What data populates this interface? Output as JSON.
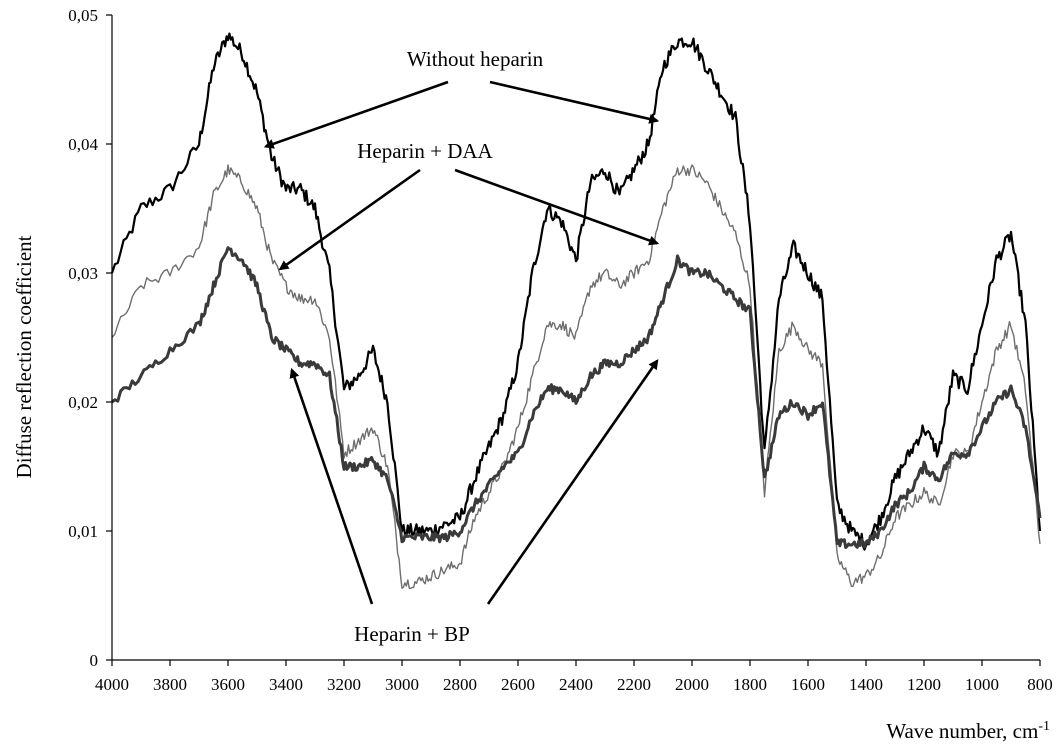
{
  "chart_data": {
    "type": "line",
    "title": "",
    "xlabel": "Wave number, cm",
    "xlabel_sup": "-1",
    "ylabel": "Diffuse reflection coefficient",
    "xlim": [
      4000,
      800
    ],
    "x_reversed": true,
    "ylim": [
      0,
      0.05
    ],
    "grid": false,
    "legend": "none",
    "x_ticks": [
      "4000",
      "3800",
      "3600",
      "3400",
      "3200",
      "3000",
      "2800",
      "2600",
      "2400",
      "2200",
      "2000",
      "1800",
      "1600",
      "1400",
      "1200",
      "1000",
      "800"
    ],
    "y_ticks": [
      "0",
      "0,01",
      "0,02",
      "0,03",
      "0,04",
      "0,05"
    ],
    "x": [
      4000,
      3900,
      3800,
      3700,
      3650,
      3600,
      3550,
      3500,
      3450,
      3400,
      3350,
      3300,
      3250,
      3200,
      3150,
      3100,
      3050,
      3000,
      2950,
      2900,
      2850,
      2800,
      2750,
      2700,
      2650,
      2600,
      2550,
      2500,
      2450,
      2400,
      2350,
      2300,
      2250,
      2200,
      2150,
      2100,
      2050,
      2000,
      1950,
      1900,
      1850,
      1800,
      1750,
      1700,
      1650,
      1600,
      1550,
      1500,
      1450,
      1400,
      1350,
      1300,
      1250,
      1200,
      1150,
      1100,
      1050,
      1000,
      950,
      900,
      850,
      800
    ],
    "series": [
      {
        "values": [
          0.03,
          0.035,
          0.0365,
          0.04,
          0.046,
          0.0485,
          0.047,
          0.044,
          0.039,
          0.0365,
          0.0365,
          0.035,
          0.03,
          0.021,
          0.022,
          0.024,
          0.02,
          0.01,
          0.01,
          0.01,
          0.0105,
          0.011,
          0.014,
          0.0165,
          0.019,
          0.023,
          0.03,
          0.035,
          0.034,
          0.031,
          0.037,
          0.038,
          0.036,
          0.038,
          0.04,
          0.046,
          0.048,
          0.048,
          0.046,
          0.044,
          0.042,
          0.034,
          0.016,
          0.028,
          0.032,
          0.03,
          0.028,
          0.012,
          0.01,
          0.009,
          0.011,
          0.014,
          0.016,
          0.018,
          0.016,
          0.022,
          0.021,
          0.026,
          0.031,
          0.033,
          0.026,
          0.01
        ],
        "color": "#000000"
      },
      {
        "values": [
          0.025,
          0.029,
          0.03,
          0.032,
          0.036,
          0.038,
          0.037,
          0.035,
          0.031,
          0.029,
          0.028,
          0.028,
          0.025,
          0.016,
          0.017,
          0.018,
          0.015,
          0.006,
          0.006,
          0.0065,
          0.007,
          0.0075,
          0.011,
          0.013,
          0.015,
          0.018,
          0.022,
          0.026,
          0.026,
          0.025,
          0.029,
          0.03,
          0.029,
          0.03,
          0.031,
          0.035,
          0.038,
          0.038,
          0.037,
          0.035,
          0.033,
          0.029,
          0.013,
          0.024,
          0.026,
          0.024,
          0.023,
          0.008,
          0.006,
          0.0065,
          0.008,
          0.011,
          0.012,
          0.013,
          0.012,
          0.016,
          0.016,
          0.02,
          0.024,
          0.026,
          0.021,
          0.009
        ],
        "color": "#6e6e6e"
      },
      {
        "values": [
          0.02,
          0.022,
          0.024,
          0.026,
          0.029,
          0.032,
          0.031,
          0.029,
          0.025,
          0.024,
          0.023,
          0.023,
          0.022,
          0.015,
          0.015,
          0.0155,
          0.014,
          0.0095,
          0.0095,
          0.0095,
          0.0095,
          0.01,
          0.012,
          0.0135,
          0.015,
          0.016,
          0.019,
          0.021,
          0.021,
          0.02,
          0.022,
          0.023,
          0.023,
          0.024,
          0.025,
          0.028,
          0.031,
          0.03,
          0.03,
          0.029,
          0.028,
          0.027,
          0.014,
          0.019,
          0.02,
          0.019,
          0.02,
          0.009,
          0.009,
          0.009,
          0.01,
          0.012,
          0.013,
          0.015,
          0.014,
          0.016,
          0.016,
          0.018,
          0.02,
          0.021,
          0.018,
          0.011
        ],
        "color": "#3a3a3a"
      }
    ],
    "annotations": [
      {
        "text": "Without heparin",
        "targets": [
          [
            3470,
            0.0398
          ],
          [
            2120,
            0.0418
          ]
        ]
      },
      {
        "text": "Heparin + DAA",
        "targets": [
          [
            3420,
            0.0303
          ],
          [
            2120,
            0.0323
          ]
        ]
      },
      {
        "text": "Heparin + BP",
        "targets": [
          [
            3380,
            0.0225
          ],
          [
            2120,
            0.0232
          ]
        ]
      }
    ]
  }
}
